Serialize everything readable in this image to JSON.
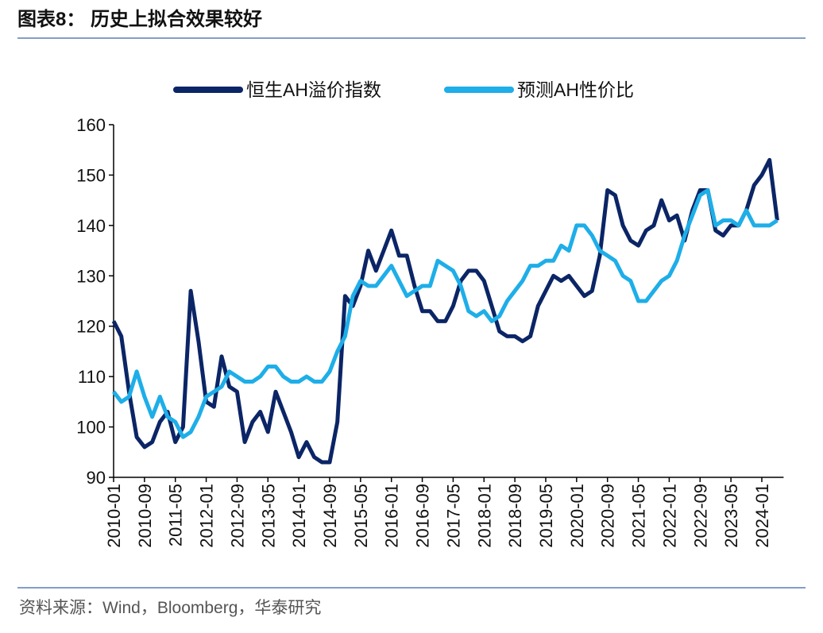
{
  "chart_data": {
    "type": "line",
    "title": "图表8：  历史上拟合效果较好",
    "source": "资料来源：Wind，Bloomberg，华泰研究",
    "categories": [
      "2010-01",
      null,
      null,
      null,
      "2010-09",
      null,
      null,
      null,
      "2011-05",
      null,
      null,
      null,
      "2012-01",
      null,
      null,
      null,
      "2012-09",
      null,
      null,
      null,
      "2013-05",
      null,
      null,
      null,
      "2014-01",
      null,
      null,
      null,
      "2014-09",
      null,
      null,
      null,
      "2015-05",
      null,
      null,
      null,
      "2016-01",
      null,
      null,
      null,
      "2016-09",
      null,
      null,
      null,
      "2017-05",
      null,
      null,
      null,
      "2018-01",
      null,
      null,
      null,
      "2018-09",
      null,
      null,
      null,
      "2019-05",
      null,
      null,
      null,
      "2020-01",
      null,
      null,
      null,
      "2020-09",
      null,
      null,
      null,
      "2021-05",
      null,
      null,
      null,
      "2022-01",
      null,
      null,
      null,
      "2022-09",
      null,
      null,
      null,
      "2023-05",
      null,
      null,
      null,
      "2024-01",
      null,
      null
    ],
    "series": [
      {
        "name": "恒生AH溢价指数",
        "color": "#0b2566",
        "values": [
          121,
          118,
          107,
          98,
          96,
          97,
          101,
          103,
          97,
          100,
          127,
          117,
          105,
          104,
          114,
          108,
          107,
          97,
          101,
          103,
          99,
          107,
          103,
          99,
          94,
          97,
          94,
          93,
          93,
          101,
          126,
          124,
          128,
          135,
          131,
          135,
          139,
          134,
          134,
          128,
          123,
          123,
          121,
          121,
          124,
          129,
          131,
          131,
          129,
          124,
          119,
          118,
          118,
          117,
          118,
          124,
          127,
          130,
          129,
          130,
          128,
          126,
          127,
          134,
          147,
          146,
          140,
          137,
          136,
          139,
          140,
          145,
          141,
          142,
          137,
          143,
          147,
          147,
          139,
          138,
          140,
          140,
          143,
          148,
          150,
          153,
          141
        ]
      },
      {
        "name": "预测AH性价比",
        "color": "#1eaee8",
        "values": [
          107,
          105,
          106,
          111,
          106,
          102,
          106,
          102,
          101,
          98,
          99,
          102,
          106,
          107,
          108,
          111,
          110,
          109,
          109,
          110,
          112,
          112,
          110,
          109,
          109,
          110,
          109,
          109,
          111,
          115,
          118,
          126,
          129,
          128,
          128,
          130,
          132,
          129,
          126,
          127,
          128,
          128,
          133,
          132,
          131,
          128,
          123,
          122,
          123,
          121,
          122,
          125,
          127,
          129,
          132,
          132,
          133,
          133,
          136,
          135,
          140,
          140,
          138,
          135,
          134,
          133,
          130,
          129,
          125,
          125,
          127,
          129,
          130,
          133,
          138,
          142,
          146,
          147,
          140,
          141,
          141,
          140,
          143,
          140,
          140,
          140,
          141
        ]
      }
    ],
    "ylim": [
      90,
      160
    ],
    "yticks": [
      90,
      100,
      110,
      120,
      130,
      140,
      150,
      160
    ],
    "legend": "top"
  }
}
